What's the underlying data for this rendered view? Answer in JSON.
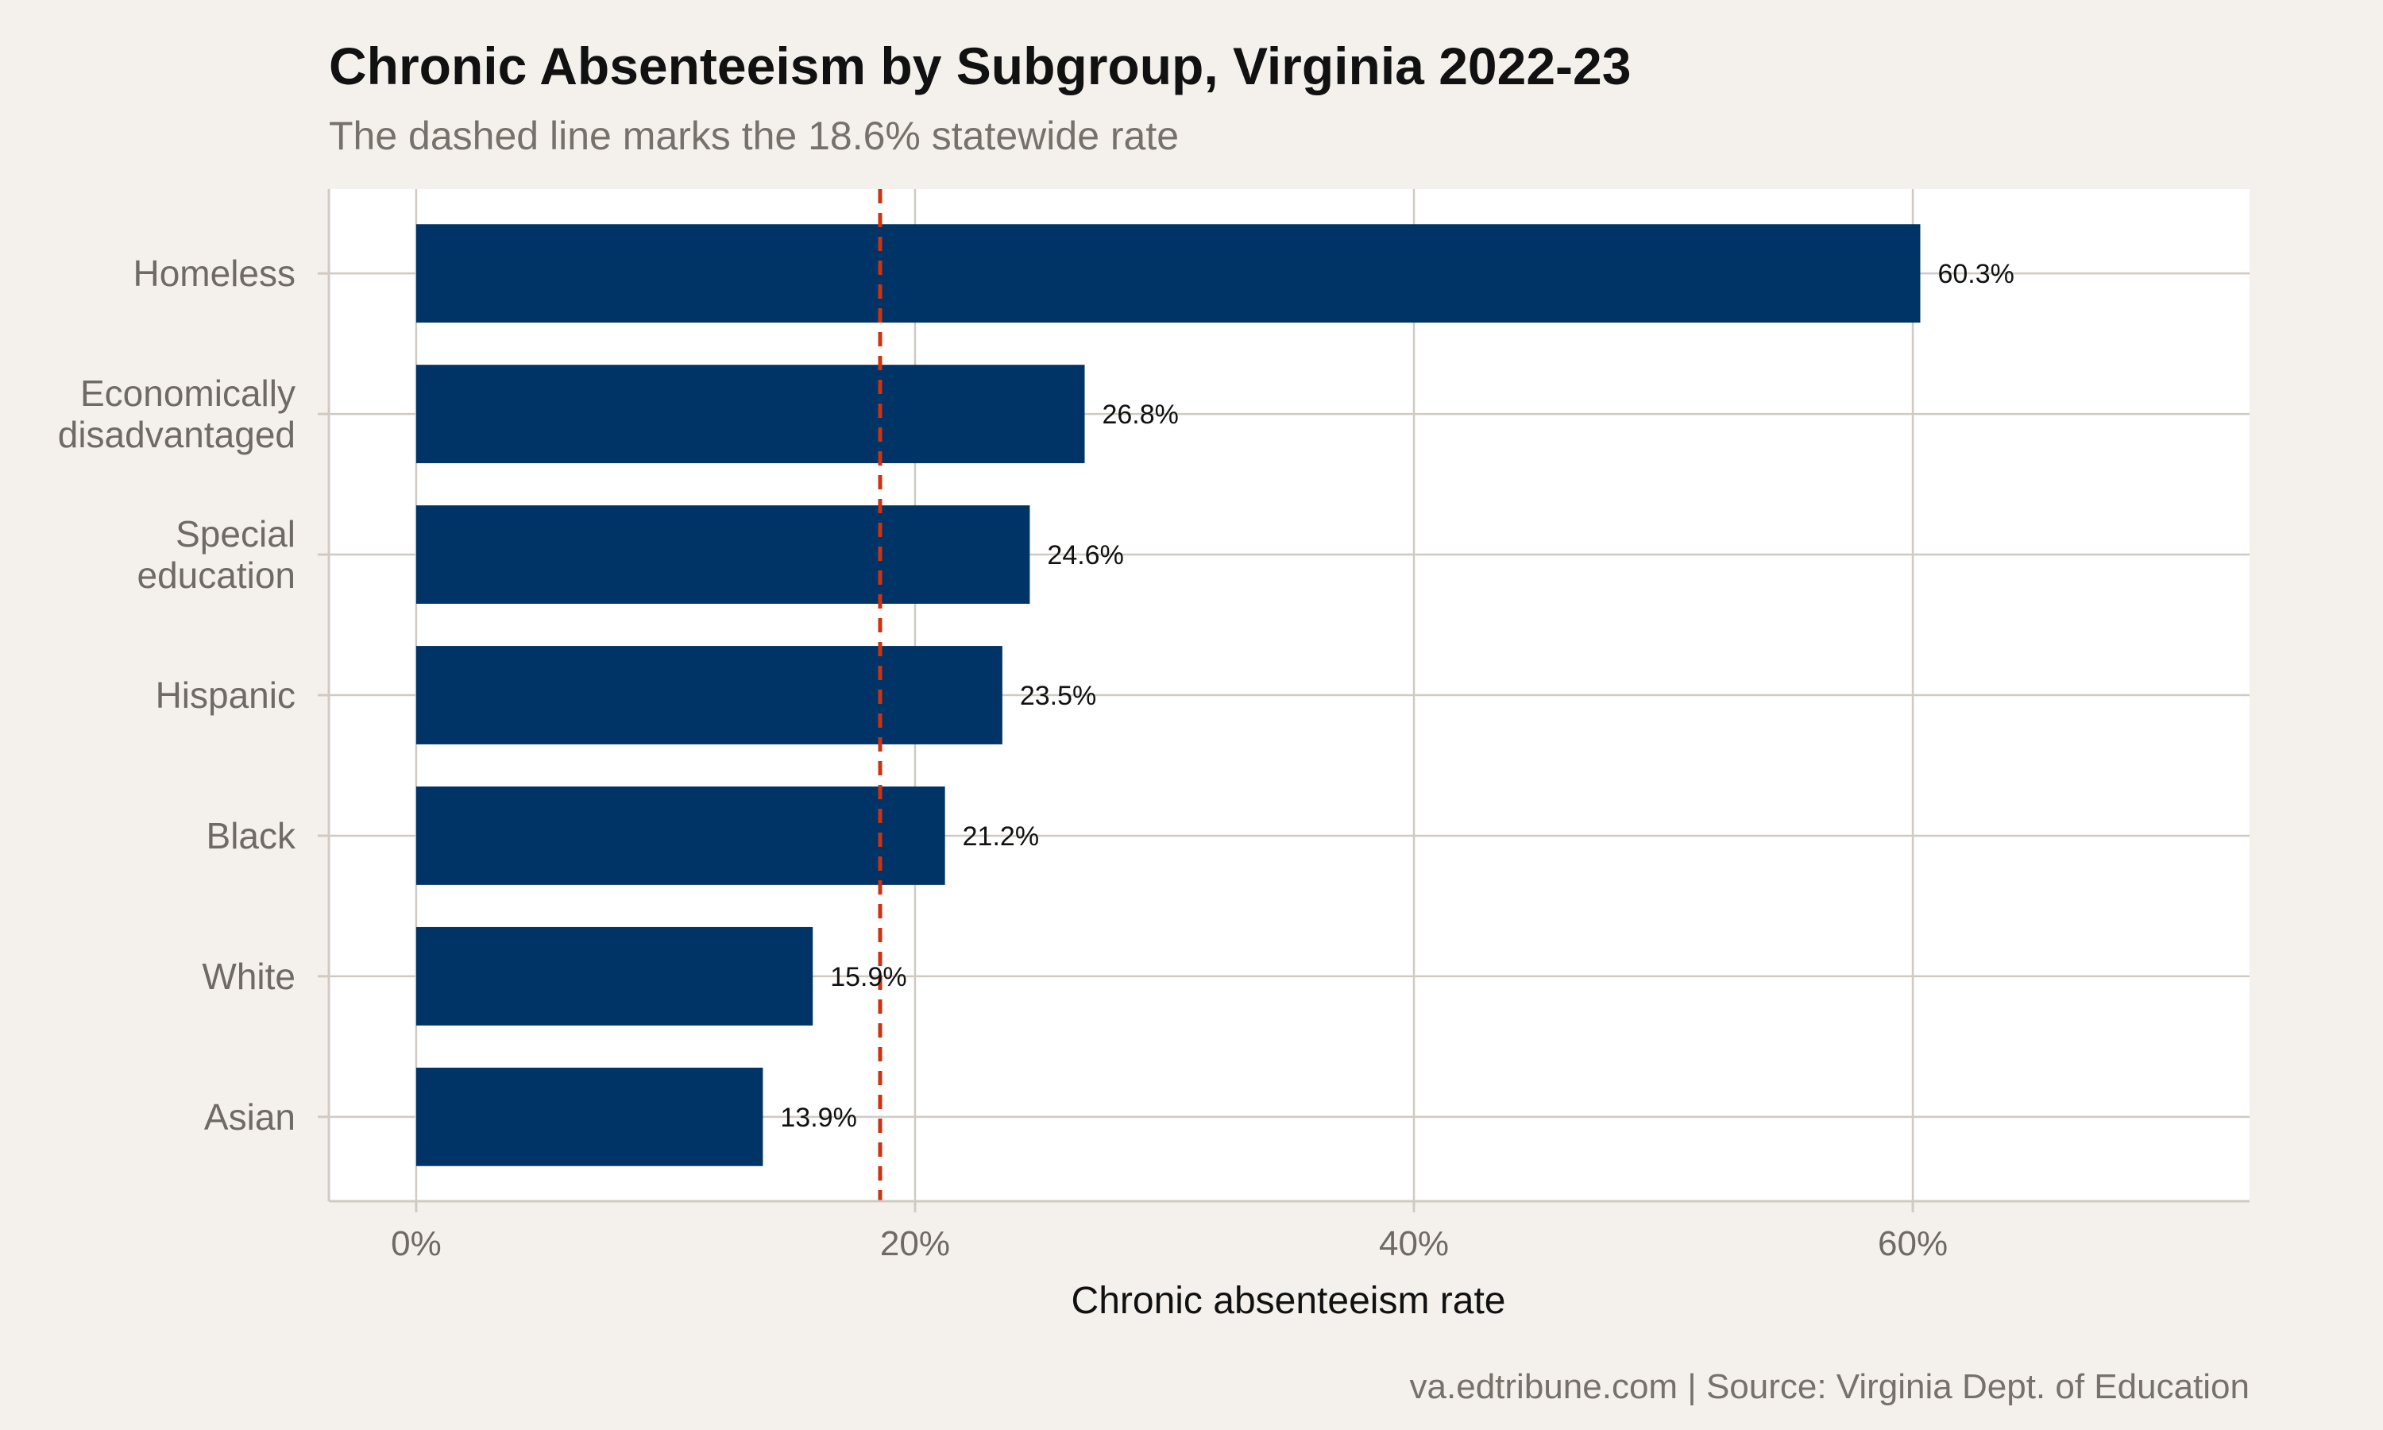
{
  "colors": {
    "background": "#f4f1ec",
    "panel": "#ffffff",
    "bar": "#003366",
    "reference_line": "#cc3311",
    "grid": "#cfcac3",
    "axis_text": "#6f6a65",
    "title": "#111111",
    "subtitle": "#77716b",
    "label_text": "#111111"
  },
  "caption": "va.edtribune.com | Source: Virginia Dept. of Education",
  "chart_data": {
    "type": "bar",
    "orientation": "horizontal",
    "title": "Chronic Absenteeism by Subgroup, Virginia 2022-23",
    "subtitle": "The dashed line marks the 18.6% statewide rate",
    "xlabel": "Chronic absenteeism rate",
    "ylabel": "",
    "xlim": [
      -3.5,
      73.5
    ],
    "xticks": [
      0,
      20,
      40,
      60
    ],
    "xtick_labels": [
      "0%",
      "20%",
      "40%",
      "60%"
    ],
    "grid": true,
    "categories": [
      "Homeless",
      "Economically disadvantaged",
      "Special education",
      "Hispanic",
      "Black",
      "White",
      "Asian"
    ],
    "category_lines": [
      [
        "Homeless"
      ],
      [
        "Economically",
        "disadvantaged"
      ],
      [
        "Special",
        "education"
      ],
      [
        "Hispanic"
      ],
      [
        "Black"
      ],
      [
        "White"
      ],
      [
        "Asian"
      ]
    ],
    "values": [
      60.3,
      26.8,
      24.6,
      23.5,
      21.2,
      15.9,
      13.9
    ],
    "value_labels": [
      "60.3%",
      "26.8%",
      "24.6%",
      "23.5%",
      "21.2%",
      "15.9%",
      "13.9%"
    ],
    "reference_line": {
      "value": 18.6,
      "style": "dashed"
    }
  }
}
